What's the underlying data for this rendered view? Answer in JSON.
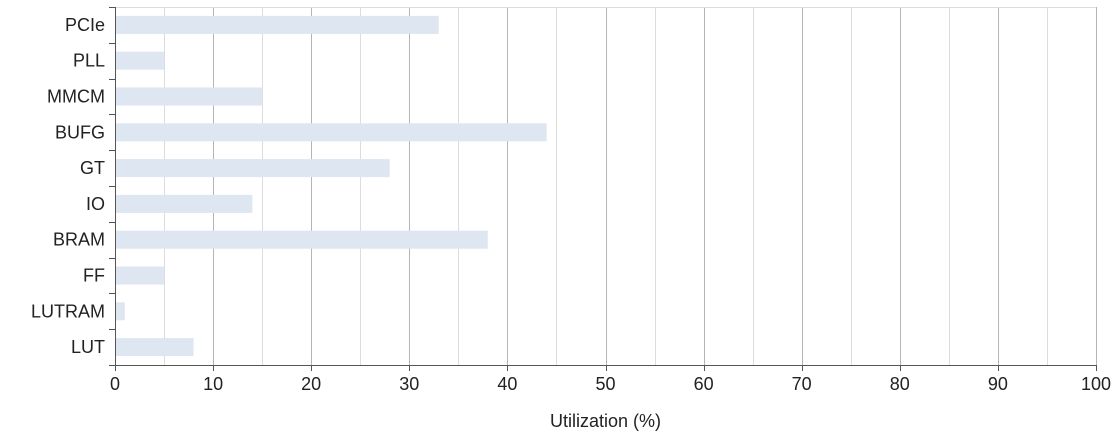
{
  "chart_data": {
    "type": "bar",
    "orientation": "horizontal",
    "categories": [
      "LUT",
      "LUTRAM",
      "FF",
      "BRAM",
      "IO",
      "GT",
      "BUFG",
      "MMCM",
      "PLL",
      "PCIe"
    ],
    "values": [
      8,
      1,
      5,
      38,
      14,
      28,
      44,
      15,
      5,
      33
    ],
    "xlabel": "Utilization (%)",
    "ylabel": "",
    "title": "",
    "xlim": [
      0,
      100
    ],
    "xticks": [
      0,
      10,
      20,
      30,
      40,
      50,
      60,
      70,
      80,
      90,
      100
    ],
    "minor_gridlines": true,
    "grid": true,
    "legend": "none",
    "colors": {
      "bar": "#dde6f1",
      "major_grid": "#b5b5b5",
      "minor_grid": "#dcdcdc",
      "axis": "#555555",
      "text": "#222222"
    }
  }
}
